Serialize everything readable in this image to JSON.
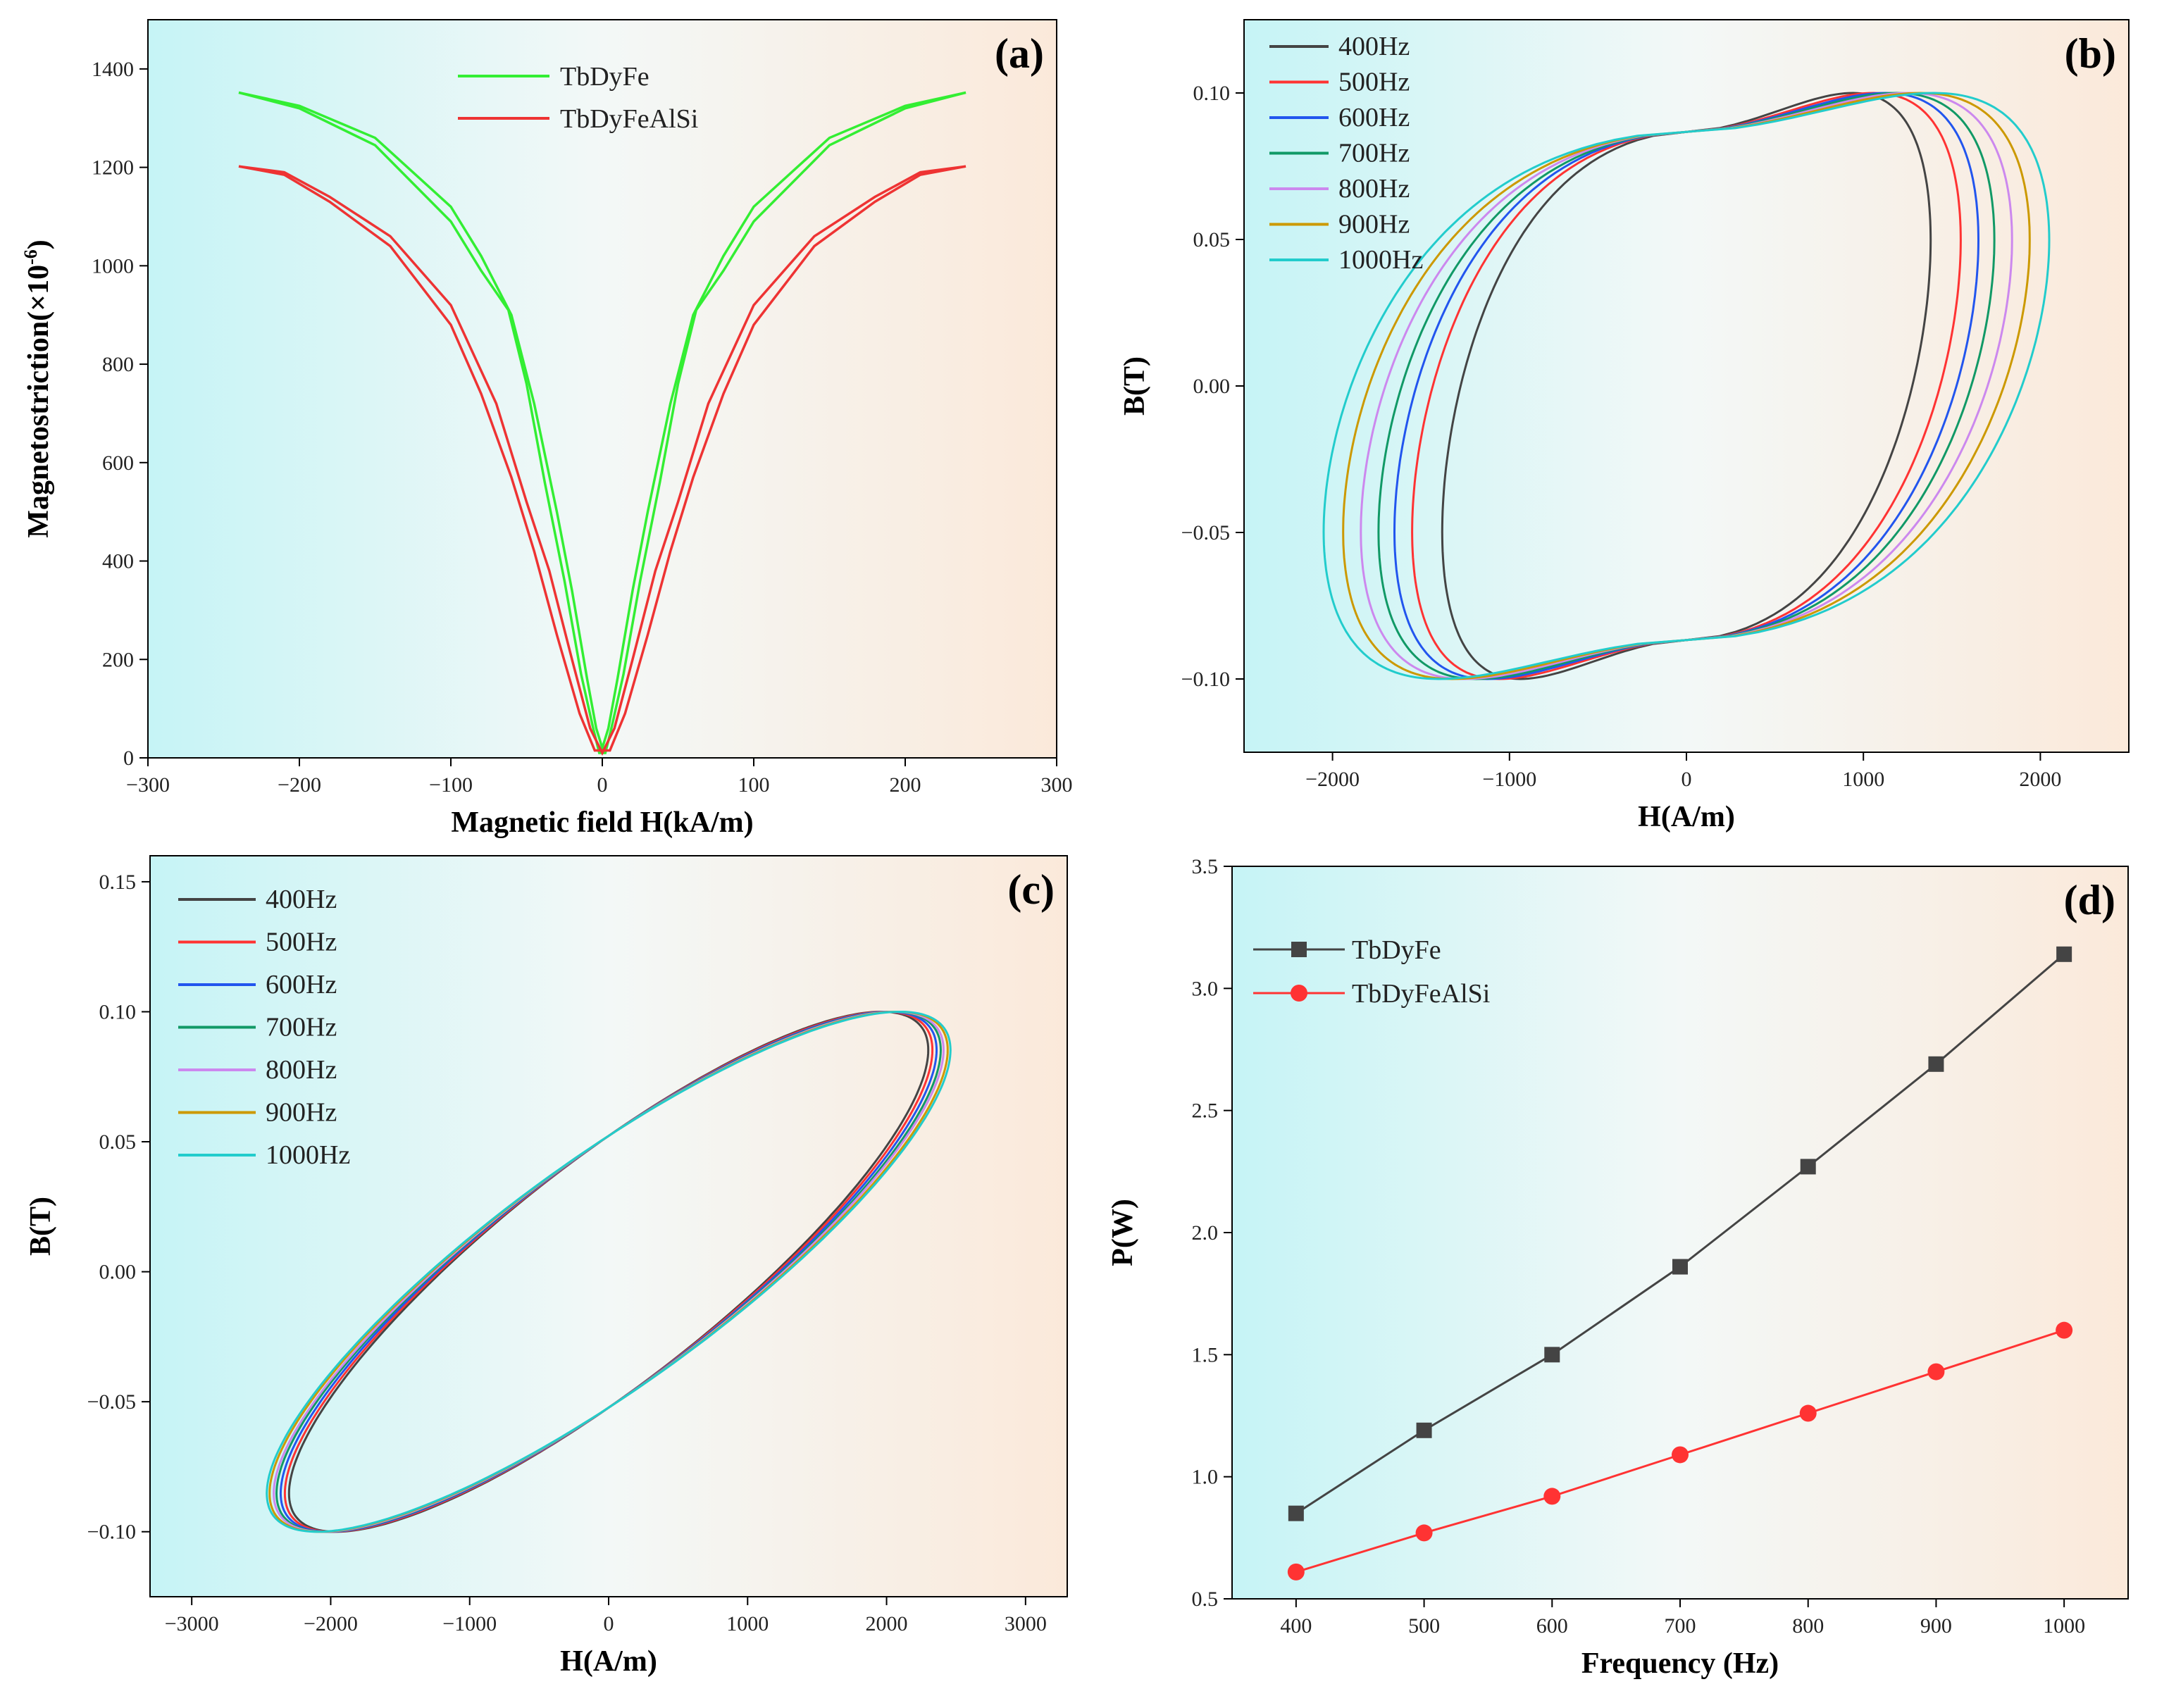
{
  "figure": {
    "panels": [
      "a",
      "b",
      "c",
      "d"
    ]
  },
  "chart_data": [
    {
      "id": "a",
      "type": "line",
      "panel_label": "(a)",
      "xlabel": "Magnetic field H(kA/m)",
      "ylabel": "Magnetostriction(×10",
      "ylabel_sup": "-6",
      "ylabel_end": ")",
      "xlim": [
        -300,
        300
      ],
      "ylim": [
        0,
        1500
      ],
      "xticks": [
        -300,
        -200,
        -100,
        0,
        100,
        200,
        300
      ],
      "yticks": [
        0,
        200,
        400,
        600,
        800,
        1000,
        1200,
        1400
      ],
      "xtick_labels": [
        "−300",
        "−200",
        "−100",
        "0",
        "100",
        "200",
        "300"
      ],
      "ytick_labels": [
        "0",
        "200",
        "400",
        "600",
        "800",
        "1000",
        "1200",
        "1400"
      ],
      "series": [
        {
          "name": "TbDyFe",
          "color": "#33ee33",
          "upper_branch": [
            [
              -240,
              1352
            ],
            [
              -200,
              1325
            ],
            [
              -150,
              1260
            ],
            [
              -100,
              1120
            ],
            [
              -80,
              1020
            ],
            [
              -60,
              900
            ],
            [
              -45,
              720
            ],
            [
              -30,
              500
            ],
            [
              -20,
              340
            ],
            [
              -10,
              160
            ],
            [
              -4,
              60
            ],
            [
              0,
              20
            ],
            [
              4,
              60
            ],
            [
              10,
              160
            ],
            [
              20,
              340
            ],
            [
              30,
              500
            ],
            [
              45,
              720
            ],
            [
              60,
              900
            ],
            [
              80,
              1020
            ],
            [
              100,
              1120
            ],
            [
              150,
              1260
            ],
            [
              200,
              1325
            ],
            [
              240,
              1352
            ]
          ],
          "lower_branch": [
            [
              -240,
              1352
            ],
            [
              -200,
              1320
            ],
            [
              -150,
              1245
            ],
            [
              -100,
              1090
            ],
            [
              -80,
              990
            ],
            [
              -62,
              910
            ],
            [
              -50,
              760
            ],
            [
              -38,
              560
            ],
            [
              -25,
              360
            ],
            [
              -14,
              170
            ],
            [
              -6,
              60
            ],
            [
              -2,
              10
            ],
            [
              2,
              10
            ],
            [
              6,
              60
            ],
            [
              14,
              170
            ],
            [
              25,
              360
            ],
            [
              38,
              560
            ],
            [
              50,
              760
            ],
            [
              62,
              910
            ],
            [
              80,
              990
            ],
            [
              100,
              1090
            ],
            [
              150,
              1245
            ],
            [
              200,
              1320
            ],
            [
              240,
              1352
            ]
          ]
        },
        {
          "name": "TbDyFeAlSi",
          "color": "#ee3333",
          "upper_branch": [
            [
              -240,
              1202
            ],
            [
              -210,
              1190
            ],
            [
              -180,
              1140
            ],
            [
              -140,
              1060
            ],
            [
              -100,
              920
            ],
            [
              -70,
              720
            ],
            [
              -50,
              520
            ],
            [
              -35,
              380
            ],
            [
              -20,
              200
            ],
            [
              -8,
              60
            ],
            [
              0,
              10
            ],
            [
              8,
              60
            ],
            [
              20,
              200
            ],
            [
              35,
              380
            ],
            [
              50,
              520
            ],
            [
              70,
              720
            ],
            [
              100,
              920
            ],
            [
              140,
              1060
            ],
            [
              180,
              1140
            ],
            [
              210,
              1190
            ],
            [
              240,
              1202
            ]
          ],
          "lower_branch": [
            [
              -240,
              1202
            ],
            [
              -210,
              1185
            ],
            [
              -180,
              1130
            ],
            [
              -140,
              1040
            ],
            [
              -100,
              880
            ],
            [
              -80,
              740
            ],
            [
              -60,
              570
            ],
            [
              -45,
              420
            ],
            [
              -30,
              250
            ],
            [
              -15,
              90
            ],
            [
              -5,
              15
            ],
            [
              5,
              15
            ],
            [
              15,
              90
            ],
            [
              30,
              250
            ],
            [
              45,
              420
            ],
            [
              60,
              570
            ],
            [
              80,
              740
            ],
            [
              100,
              880
            ],
            [
              140,
              1040
            ],
            [
              180,
              1130
            ],
            [
              210,
              1185
            ],
            [
              240,
              1202
            ]
          ]
        }
      ],
      "legend": [
        {
          "label": "TbDyFe",
          "color": "#33ee33"
        },
        {
          "label": "TbDyFeAlSi",
          "color": "#ee3333"
        }
      ],
      "legend_position": "top-center"
    },
    {
      "id": "b",
      "type": "line",
      "panel_label": "(b)",
      "xlabel": "H(A/m)",
      "ylabel": "B(T)",
      "xlim": [
        -2500,
        2500
      ],
      "ylim": [
        -0.125,
        0.125
      ],
      "xticks": [
        -2000,
        -1000,
        0,
        1000,
        2000
      ],
      "yticks": [
        -0.1,
        -0.05,
        0.0,
        0.05,
        0.1
      ],
      "xtick_labels": [
        "−2000",
        "−1000",
        "0",
        "1000",
        "2000"
      ],
      "ytick_labels": [
        "−0.10",
        "−0.05",
        "0.00",
        "0.05",
        "0.10"
      ],
      "loop_shape": "wide-oval",
      "series": [
        {
          "name": "400Hz",
          "color": "#444444",
          "hmax": 1380
        },
        {
          "name": "500Hz",
          "color": "#ff3333",
          "hmax": 1550
        },
        {
          "name": "600Hz",
          "color": "#2255ee",
          "hmax": 1650
        },
        {
          "name": "700Hz",
          "color": "#119966",
          "hmax": 1740
        },
        {
          "name": "800Hz",
          "color": "#cc88ee",
          "hmax": 1840
        },
        {
          "name": "900Hz",
          "color": "#cc9900",
          "hmax": 1940
        },
        {
          "name": "1000Hz",
          "color": "#22cccc",
          "hmax": 2050
        }
      ],
      "bmax": 0.1,
      "legend": [
        {
          "label": "400Hz",
          "color": "#444444"
        },
        {
          "label": "500Hz",
          "color": "#ff3333"
        },
        {
          "label": "600Hz",
          "color": "#2255ee"
        },
        {
          "label": "700Hz",
          "color": "#119966"
        },
        {
          "label": "800Hz",
          "color": "#cc88ee"
        },
        {
          "label": "900Hz",
          "color": "#cc9900"
        },
        {
          "label": "1000Hz",
          "color": "#22cccc"
        }
      ],
      "legend_position": "top-left"
    },
    {
      "id": "c",
      "type": "line",
      "panel_label": "(c)",
      "xlabel": "H(A/m)",
      "ylabel": "B(T)",
      "xlim": [
        -3300,
        3300
      ],
      "ylim": [
        -0.125,
        0.16
      ],
      "xticks": [
        -3000,
        -2000,
        -1000,
        0,
        1000,
        2000,
        3000
      ],
      "yticks": [
        -0.1,
        -0.05,
        0.0,
        0.05,
        0.1,
        0.15
      ],
      "xtick_labels": [
        "−3000",
        "−2000",
        "−1000",
        "0",
        "1000",
        "2000",
        "3000"
      ],
      "ytick_labels": [
        "−0.10",
        "−0.05",
        "0.00",
        "0.05",
        "0.10",
        "0.15"
      ],
      "loop_shape": "leaf",
      "series": [
        {
          "name": "400Hz",
          "color": "#444444",
          "hmax": 2300
        },
        {
          "name": "500Hz",
          "color": "#ff3333",
          "hmax": 2330
        },
        {
          "name": "600Hz",
          "color": "#2255ee",
          "hmax": 2360
        },
        {
          "name": "700Hz",
          "color": "#119966",
          "hmax": 2390
        },
        {
          "name": "800Hz",
          "color": "#cc88ee",
          "hmax": 2410
        },
        {
          "name": "900Hz",
          "color": "#cc9900",
          "hmax": 2440
        },
        {
          "name": "1000Hz",
          "color": "#22cccc",
          "hmax": 2460
        }
      ],
      "bmax": 0.1,
      "legend": [
        {
          "label": "400Hz",
          "color": "#444444"
        },
        {
          "label": "500Hz",
          "color": "#ff3333"
        },
        {
          "label": "600Hz",
          "color": "#2255ee"
        },
        {
          "label": "700Hz",
          "color": "#119966"
        },
        {
          "label": "800Hz",
          "color": "#cc88ee"
        },
        {
          "label": "900Hz",
          "color": "#cc9900"
        },
        {
          "label": "1000Hz",
          "color": "#22cccc"
        }
      ],
      "legend_position": "top-left"
    },
    {
      "id": "d",
      "type": "line",
      "panel_label": "(d)",
      "xlabel": "Frequency (Hz)",
      "ylabel": "P(W)",
      "xlim": [
        350,
        1050
      ],
      "ylim": [
        0.5,
        3.5
      ],
      "xticks": [
        400,
        500,
        600,
        700,
        800,
        900,
        1000
      ],
      "yticks": [
        0.5,
        1.0,
        1.5,
        2.0,
        2.5,
        3.0,
        3.5
      ],
      "xtick_labels": [
        "400",
        "500",
        "600",
        "700",
        "800",
        "900",
        "1000"
      ],
      "ytick_labels": [
        "0.5",
        "1.0",
        "1.5",
        "2.0",
        "2.5",
        "3.0",
        "3.5"
      ],
      "x": [
        400,
        500,
        600,
        700,
        800,
        900,
        1000
      ],
      "series": [
        {
          "name": "TbDyFe",
          "color": "#444444",
          "marker": "square",
          "values": [
            0.85,
            1.19,
            1.5,
            1.86,
            2.27,
            2.69,
            3.14
          ]
        },
        {
          "name": "TbDyFeAlSi",
          "color": "#ff3333",
          "marker": "circle",
          "values": [
            0.61,
            0.77,
            0.92,
            1.09,
            1.26,
            1.43,
            1.6
          ]
        }
      ],
      "legend": [
        {
          "label": "TbDyFe",
          "color": "#444444",
          "marker": "square"
        },
        {
          "label": "TbDyFeAlSi",
          "color": "#ff3333",
          "marker": "circle"
        }
      ],
      "legend_position": "top-left"
    }
  ]
}
